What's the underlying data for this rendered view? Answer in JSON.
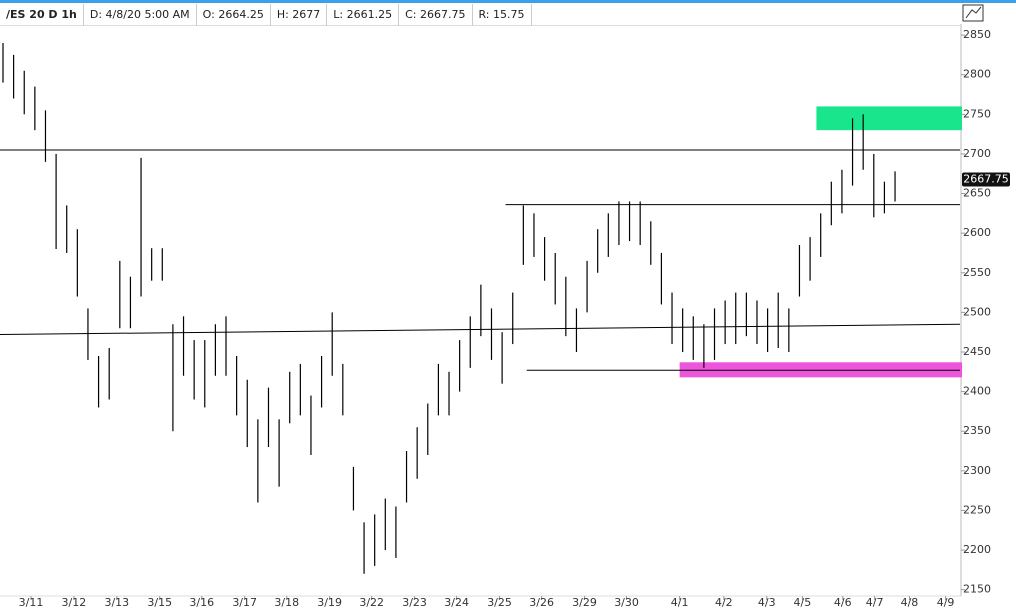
{
  "header": {
    "symbol": "/ES 20 D 1h",
    "date": "D: 4/8/20 5:00 AM",
    "open": "O: 2664.25",
    "high": "H: 2677",
    "low": "L: 2661.25",
    "close": "C: 2667.75",
    "range": "R: 15.75"
  },
  "chart_data": {
    "type": "ohlc",
    "color": "#000000",
    "x": [
      0,
      0.25,
      0.5,
      0.75,
      1,
      1.25,
      1.5,
      1.75,
      2,
      2.25,
      2.5,
      2.75,
      3,
      3.25,
      3.5,
      3.75,
      4,
      4.25,
      4.5,
      4.75,
      5,
      5.25,
      5.5,
      5.75,
      6,
      6.25,
      6.5,
      6.75,
      7,
      7.25,
      7.5,
      7.75,
      8,
      8.25,
      8.5,
      8.75,
      9,
      9.25,
      9.5,
      9.75,
      10,
      10.25,
      10.5,
      10.75,
      11,
      11.25,
      11.5,
      11.75,
      12,
      12.25,
      12.5,
      12.75,
      13,
      13.25,
      13.5,
      13.75,
      14,
      14.25,
      14.5,
      14.75,
      15,
      15.25,
      15.5,
      15.75,
      16,
      16.25,
      16.5,
      16.75,
      17,
      17.25,
      17.5,
      17.75,
      18,
      18.25,
      18.5,
      18.75,
      19,
      19.25,
      19.5,
      19.75,
      20,
      20.25,
      20.5,
      20.75,
      21
    ],
    "high": [
      2840,
      2825,
      2805,
      2785,
      2755,
      2700,
      2635,
      2605,
      2505,
      2445,
      2455,
      2565,
      2545,
      2695,
      2581,
      2581,
      2485,
      2495,
      2465,
      2465,
      2485,
      2495,
      2445,
      2415,
      2365,
      2405,
      2365,
      2425,
      2435,
      2395,
      2445,
      2500,
      2435,
      2305,
      2235,
      2245,
      2265,
      2255,
      2325,
      2355,
      2385,
      2435,
      2425,
      2465,
      2495,
      2535,
      2505,
      2475,
      2525,
      2635,
      2625,
      2595,
      2575,
      2545,
      2505,
      2565,
      2605,
      2625,
      2640,
      2640,
      2640,
      2615,
      2575,
      2525,
      2505,
      2495,
      2485,
      2505,
      2515,
      2525,
      2525,
      2515,
      2505,
      2525,
      2505,
      2585,
      2595,
      2625,
      2665,
      2680,
      2745,
      2750,
      2700,
      2665,
      2678
    ],
    "low": [
      2790,
      2770,
      2750,
      2730,
      2690,
      2580,
      2575,
      2520,
      2440,
      2380,
      2390,
      2480,
      2480,
      2520,
      2540,
      2540,
      2350,
      2420,
      2390,
      2380,
      2420,
      2420,
      2370,
      2330,
      2260,
      2330,
      2280,
      2360,
      2370,
      2320,
      2380,
      2420,
      2370,
      2250,
      2170,
      2180,
      2200,
      2190,
      2260,
      2290,
      2320,
      2370,
      2370,
      2400,
      2430,
      2470,
      2440,
      2410,
      2460,
      2560,
      2570,
      2540,
      2510,
      2470,
      2450,
      2500,
      2550,
      2570,
      2585,
      2590,
      2585,
      2560,
      2510,
      2460,
      2450,
      2440,
      2430,
      2440,
      2460,
      2460,
      2470,
      2460,
      2450,
      2455,
      2450,
      2520,
      2540,
      2570,
      2610,
      2625,
      2660,
      2680,
      2620,
      2625,
      2640
    ],
    "last_price": 2667.75,
    "lines": [
      {
        "x": [
          0,
          22.6
        ],
        "y": [
          2705,
          2705
        ]
      },
      {
        "x": [
          11.9,
          22.6
        ],
        "y": [
          2636,
          2636
        ]
      },
      {
        "x": [
          12.4,
          22.6
        ],
        "y": [
          2427,
          2427
        ]
      },
      {
        "x": [
          0,
          22.6
        ],
        "y": [
          2472,
          2485
        ]
      }
    ],
    "zones": [
      {
        "x": [
          19.22,
          22.6
        ],
        "y": [
          2730,
          2760
        ],
        "color": "#19e68c"
      },
      {
        "x": [
          16.0,
          22.6
        ],
        "y": [
          2418,
          2437
        ],
        "color": "#ee55dd"
      }
    ],
    "xlim": [
      0,
      22.6
    ],
    "ylim": [
      2142,
      2864
    ],
    "xticks": [
      {
        "value": 0.73,
        "label": "3/11"
      },
      {
        "value": 1.74,
        "label": "3/12"
      },
      {
        "value": 2.75,
        "label": "3/13"
      },
      {
        "value": 3.76,
        "label": "3/15"
      },
      {
        "value": 4.75,
        "label": "3/16"
      },
      {
        "value": 5.76,
        "label": "3/17"
      },
      {
        "value": 6.75,
        "label": "3/18"
      },
      {
        "value": 7.76,
        "label": "3/19"
      },
      {
        "value": 8.75,
        "label": "3/22"
      },
      {
        "value": 9.76,
        "label": "3/23"
      },
      {
        "value": 10.75,
        "label": "3/24"
      },
      {
        "value": 11.76,
        "label": "3/25"
      },
      {
        "value": 12.75,
        "label": "3/26"
      },
      {
        "value": 13.76,
        "label": "3/29"
      },
      {
        "value": 14.75,
        "label": "3/30"
      },
      {
        "value": 16.0,
        "label": "4/1"
      },
      {
        "value": 17.04,
        "label": "4/2"
      },
      {
        "value": 18.05,
        "label": "4/3"
      },
      {
        "value": 18.89,
        "label": "4/5"
      },
      {
        "value": 19.84,
        "label": "4/6"
      },
      {
        "value": 20.59,
        "label": "4/7"
      },
      {
        "value": 21.41,
        "label": "4/8"
      },
      {
        "value": 22.26,
        "label": "4/9"
      }
    ],
    "yticks": [
      2150,
      2200,
      2250,
      2300,
      2350,
      2400,
      2450,
      2500,
      2550,
      2600,
      2650,
      2700,
      2750,
      2800,
      2850
    ]
  }
}
